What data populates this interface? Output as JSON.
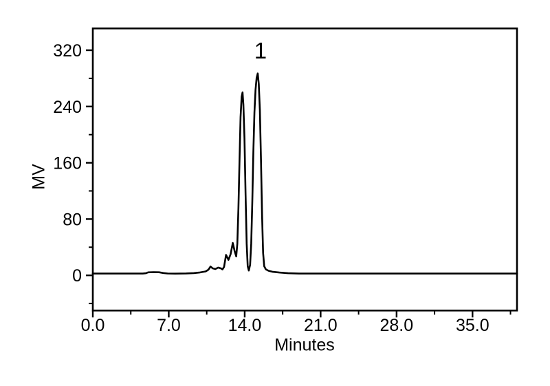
{
  "page": {
    "background": "#ffffff",
    "foreground": "#000000"
  },
  "chart_data": {
    "type": "line",
    "title": "",
    "xlabel": "Minutes",
    "ylabel": "MV",
    "xlim": [
      0,
      39.1
    ],
    "ylim": [
      -50,
      351
    ],
    "grid": false,
    "legend": null,
    "line_color": "#000000",
    "x_axis": {
      "major_ticks": [
        0,
        7,
        14,
        21,
        28,
        35
      ],
      "tick_labels": [
        "0.0",
        "7.0",
        "14.0",
        "21.0",
        "28.0",
        "35.0"
      ],
      "minor_step": 3.5
    },
    "y_axis": {
      "major_ticks": [
        0,
        80,
        160,
        240,
        320
      ],
      "tick_labels": [
        "0",
        "80",
        "160",
        "240",
        "320"
      ],
      "minor_step": 40
    },
    "annotations": [
      {
        "label": "1",
        "t_min": 15.46,
        "mv": 319
      }
    ],
    "peaks": [
      {
        "label": "",
        "apex_min": 13.8,
        "height_mv": 260
      },
      {
        "label": "1",
        "apex_min": 15.2,
        "height_mv": 287
      }
    ],
    "series": [
      {
        "name": "detector-signal",
        "x": [
          0,
          1.0,
          2.0,
          3.0,
          4.0,
          4.6,
          4.9,
          5.1,
          5.6,
          6.1,
          6.5,
          6.9,
          7.6,
          8.6,
          9.3,
          9.9,
          10.4,
          10.65,
          10.85,
          11.05,
          11.3,
          11.55,
          11.8,
          11.95,
          12.1,
          12.28,
          12.5,
          12.7,
          12.9,
          13.08,
          13.22,
          13.32,
          13.42,
          13.52,
          13.62,
          13.72,
          13.8,
          13.88,
          13.98,
          14.08,
          14.18,
          14.28,
          14.38,
          14.5,
          14.6,
          14.7,
          14.8,
          14.9,
          15.0,
          15.1,
          15.2,
          15.3,
          15.4,
          15.5,
          15.6,
          15.7,
          15.8,
          15.95,
          16.2,
          16.6,
          17.2,
          18.0,
          19.0,
          20.0,
          24.0,
          28.0,
          32.0,
          36.0,
          39.1
        ],
        "y": [
          2.5,
          2.5,
          2.5,
          2.5,
          2.5,
          2.5,
          3.0,
          4.3,
          4.6,
          4.4,
          3.3,
          2.6,
          2.4,
          2.7,
          3.2,
          4.2,
          5.6,
          8.0,
          12.5,
          10.0,
          9.0,
          11.0,
          10.0,
          8.5,
          12.0,
          29.0,
          22.0,
          30.0,
          46.0,
          34.0,
          27.0,
          45.0,
          95.0,
          160.0,
          225.0,
          254.0,
          260.0,
          243.0,
          195.0,
          115.0,
          45.0,
          13.0,
          6.8,
          15.0,
          45.0,
          105.0,
          175.0,
          232.0,
          264.0,
          281.0,
          287.0,
          272.0,
          235.0,
          165.0,
          85.0,
          32.0,
          13.0,
          8.5,
          6.5,
          5.0,
          4.0,
          3.0,
          2.5,
          2.5,
          2.5,
          2.5,
          2.5,
          2.5,
          2.5
        ]
      }
    ]
  }
}
